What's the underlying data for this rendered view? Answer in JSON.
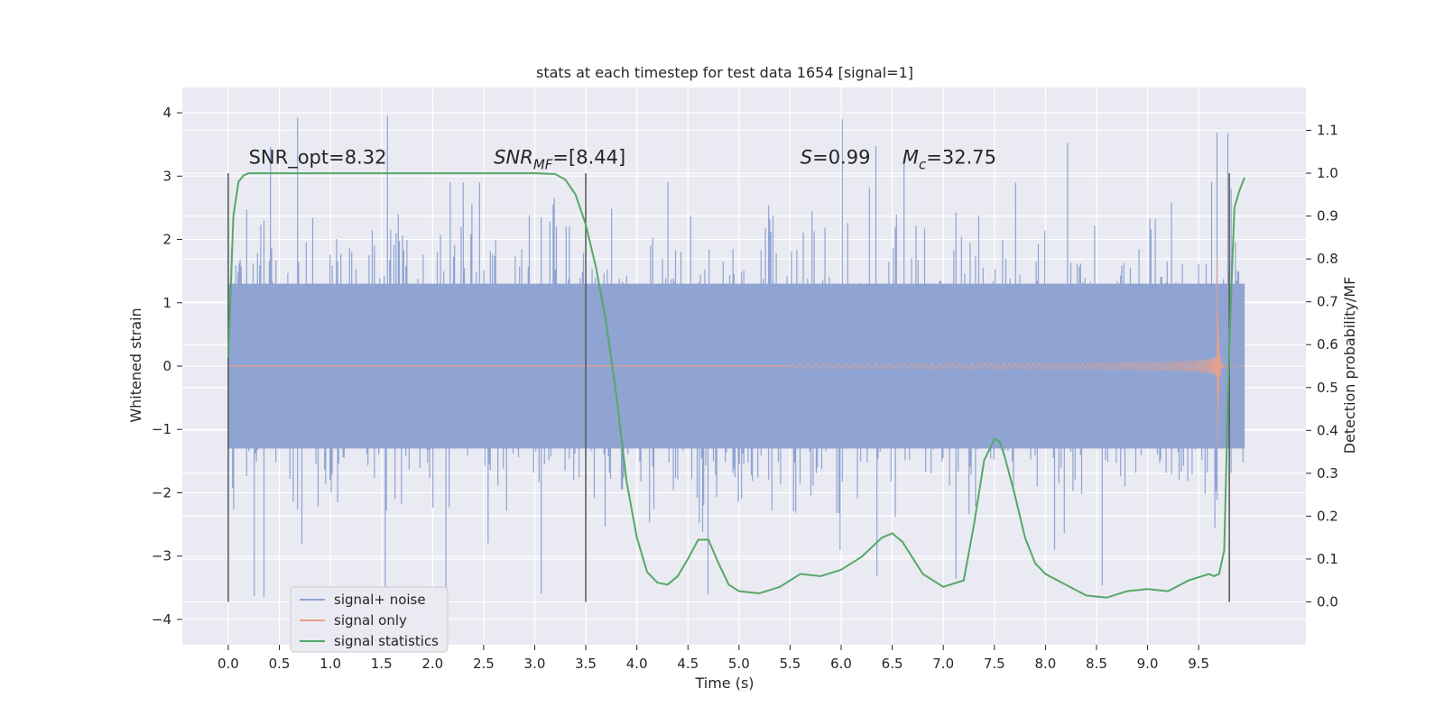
{
  "chart_data": {
    "type": "line",
    "title": "stats at each timestep for test data 1654 [signal=1]",
    "xlabel": "Time (s)",
    "ylabel": "Whitened strain",
    "y2label": "Detection probability/MF",
    "xlim": [
      -0.45,
      10.55
    ],
    "ylim": [
      -4.4,
      4.4
    ],
    "y2lim": [
      -0.1,
      1.2
    ],
    "xticks": [
      "0.0",
      "0.5",
      "1.0",
      "1.5",
      "2.0",
      "2.5",
      "3.0",
      "3.5",
      "4.0",
      "4.5",
      "5.0",
      "5.5",
      "6.0",
      "6.5",
      "7.0",
      "7.5",
      "8.0",
      "8.5",
      "9.0",
      "9.5"
    ],
    "yticks": [
      "4",
      "3",
      "2",
      "1",
      "0",
      "−1",
      "−2",
      "−3",
      "−4"
    ],
    "y2ticks": [
      "1.1",
      "1.0",
      "0.9",
      "0.8",
      "0.7",
      "0.6",
      "0.5",
      "0.4",
      "0.3",
      "0.2",
      "0.1",
      "0.0"
    ],
    "grid": true,
    "legend_position": "lower-left",
    "annotations": [
      {
        "text": "SNR_opt=8.32",
        "x": 0.2,
        "y": 3.2
      },
      {
        "text": "SNR",
        "sub": "MF",
        "text_after": "=[8.44]",
        "italic": true,
        "x": 2.6,
        "y": 3.2
      },
      {
        "text": "S",
        "text_after": "=0.99",
        "italic": true,
        "x": 5.6,
        "y": 3.2
      },
      {
        "text": "M",
        "sub": "c",
        "text_after": "=32.75",
        "italic": true,
        "x": 6.6,
        "y": 3.2
      }
    ],
    "vlines": [
      0.0,
      3.5,
      9.8
    ],
    "series": [
      {
        "name": "signal+ noise",
        "color": "#8fa4d2",
        "axis": "left",
        "band_x": [
          0.0,
          9.95
        ],
        "band_core": [
          -1.3,
          1.3
        ],
        "spike_range": [
          -4.05,
          4.05
        ]
      },
      {
        "name": "signal only",
        "color": "#e8a08a",
        "axis": "left",
        "chirp_start": 5.5,
        "merger": 9.68,
        "peak_amplitude": 2.0
      },
      {
        "name": "signal statistics",
        "color": "#55a868",
        "axis": "right",
        "x": [
          0.0,
          0.05,
          0.1,
          0.15,
          0.2,
          0.5,
          1.0,
          2.0,
          3.0,
          3.2,
          3.3,
          3.4,
          3.5,
          3.6,
          3.7,
          3.8,
          3.9,
          4.0,
          4.1,
          4.2,
          4.3,
          4.4,
          4.5,
          4.6,
          4.7,
          4.8,
          4.9,
          5.0,
          5.2,
          5.4,
          5.6,
          5.8,
          6.0,
          6.2,
          6.4,
          6.5,
          6.6,
          6.8,
          7.0,
          7.2,
          7.3,
          7.4,
          7.5,
          7.55,
          7.6,
          7.7,
          7.8,
          7.9,
          8.0,
          8.2,
          8.4,
          8.6,
          8.8,
          9.0,
          9.2,
          9.4,
          9.6,
          9.65,
          9.7,
          9.75,
          9.8,
          9.85,
          9.9,
          9.95
        ],
        "values": [
          0.57,
          0.9,
          0.98,
          0.995,
          1.0,
          1.0,
          1.0,
          1.0,
          1.0,
          0.998,
          0.985,
          0.95,
          0.88,
          0.78,
          0.65,
          0.48,
          0.28,
          0.15,
          0.07,
          0.045,
          0.04,
          0.06,
          0.1,
          0.145,
          0.145,
          0.09,
          0.04,
          0.025,
          0.02,
          0.035,
          0.065,
          0.06,
          0.075,
          0.105,
          0.15,
          0.16,
          0.14,
          0.065,
          0.035,
          0.05,
          0.18,
          0.33,
          0.38,
          0.375,
          0.34,
          0.25,
          0.15,
          0.09,
          0.065,
          0.04,
          0.015,
          0.01,
          0.025,
          0.03,
          0.025,
          0.05,
          0.065,
          0.06,
          0.065,
          0.12,
          0.6,
          0.92,
          0.96,
          0.99
        ]
      }
    ]
  }
}
